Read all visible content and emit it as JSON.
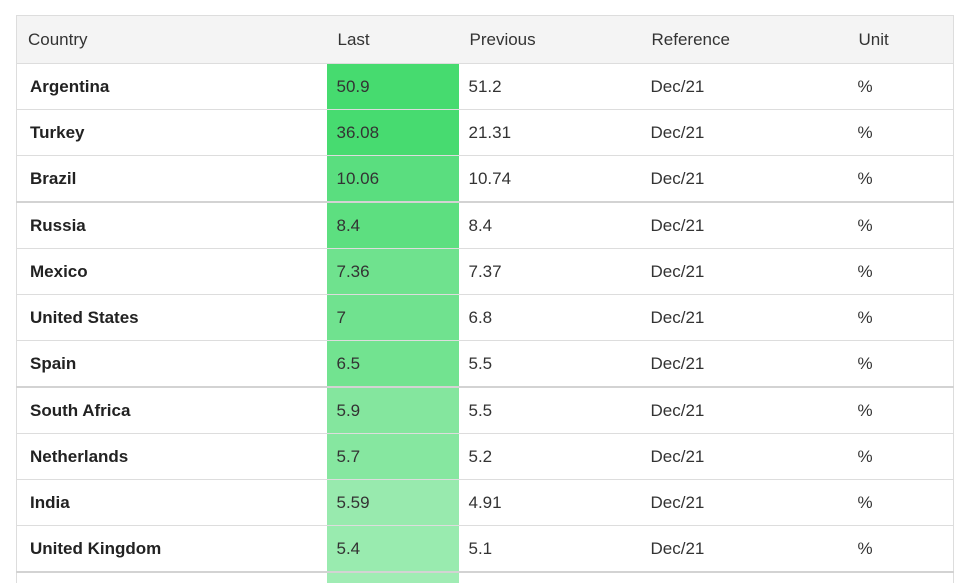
{
  "table": {
    "headers": {
      "country": "Country",
      "last": "Last",
      "previous": "Previous",
      "reference": "Reference",
      "unit": "Unit"
    },
    "rows": [
      {
        "country": "Argentina",
        "last": "50.9",
        "previous": "51.2",
        "reference": "Dec/21",
        "unit": "%",
        "heat_color": "#46db6f"
      },
      {
        "country": "Turkey",
        "last": "36.08",
        "previous": "21.31",
        "reference": "Dec/21",
        "unit": "%",
        "heat_color": "#47db70"
      },
      {
        "country": "Brazil",
        "last": "10.06",
        "previous": "10.74",
        "reference": "Dec/21",
        "unit": "%",
        "heat_color": "#5ade7f"
      },
      {
        "country": "Russia",
        "last": "8.4",
        "previous": "8.4",
        "reference": "Dec/21",
        "unit": "%",
        "heat_color": "#5ddf80"
      },
      {
        "country": "Mexico",
        "last": "7.36",
        "previous": "7.37",
        "reference": "Dec/21",
        "unit": "%",
        "heat_color": "#6fe28e"
      },
      {
        "country": "United States",
        "last": "7",
        "previous": "6.8",
        "reference": "Dec/21",
        "unit": "%",
        "heat_color": "#70e28f"
      },
      {
        "country": "Spain",
        "last": "6.5",
        "previous": "5.5",
        "reference": "Dec/21",
        "unit": "%",
        "heat_color": "#72e390"
      },
      {
        "country": "South Africa",
        "last": "5.9",
        "previous": "5.5",
        "reference": "Dec/21",
        "unit": "%",
        "heat_color": "#84e69e"
      },
      {
        "country": "Netherlands",
        "last": "5.7",
        "previous": "5.2",
        "reference": "Dec/21",
        "unit": "%",
        "heat_color": "#86e7a0"
      },
      {
        "country": "India",
        "last": "5.59",
        "previous": "4.91",
        "reference": "Dec/21",
        "unit": "%",
        "heat_color": "#98eaae"
      },
      {
        "country": "United Kingdom",
        "last": "5.4",
        "previous": "5.1",
        "reference": "Dec/21",
        "unit": "%",
        "heat_color": "#99ebaf"
      }
    ],
    "partial_row_heat_color": "#a0ecb4",
    "border_color": "#dddddd",
    "header_bg": "#f4f4f4"
  }
}
